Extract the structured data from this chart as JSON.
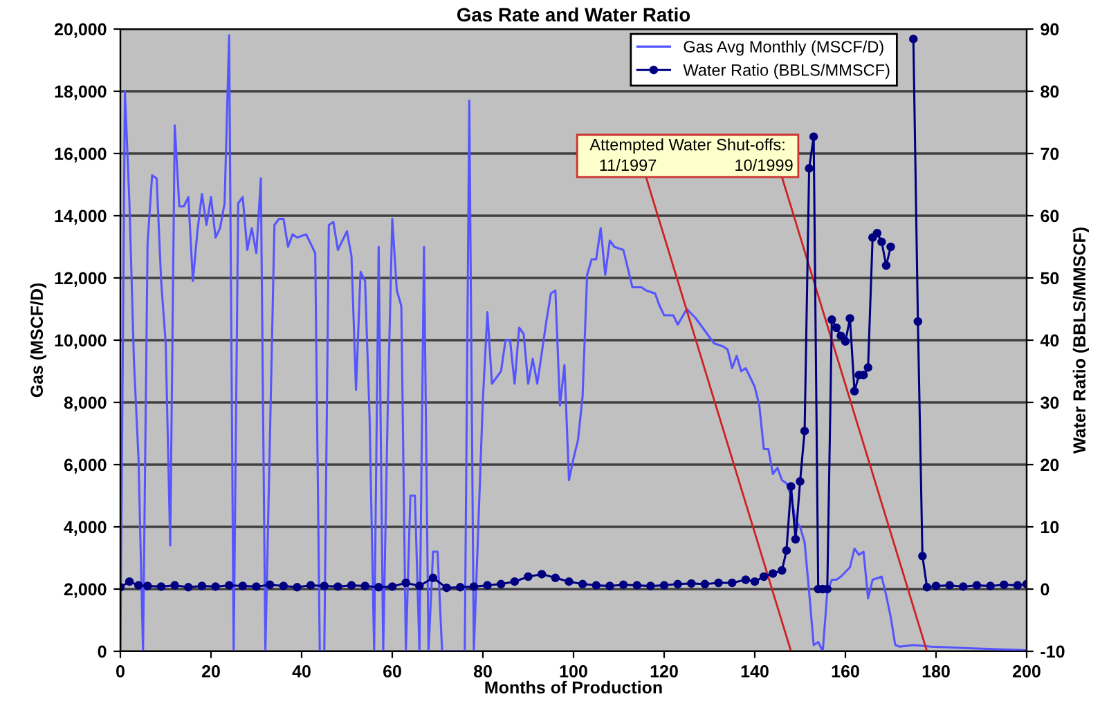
{
  "chart_data": {
    "type": "line",
    "title": "Gas Rate and Water Ratio",
    "xlabel": "Months of Production",
    "ylabel": "Gas (MSCF/D)",
    "y2label": "Water Ratio (BBLS/MMSCF)",
    "xlim": [
      0,
      200
    ],
    "xticks": [
      0,
      20,
      40,
      60,
      80,
      100,
      120,
      140,
      160,
      180,
      200
    ],
    "ylim": [
      0,
      20000
    ],
    "yticks": [
      0,
      {
        "value": 2000,
        "label": "2,000"
      },
      {
        "value": 4000,
        "label": "4,000"
      },
      {
        "value": 6000,
        "label": "6,000"
      },
      {
        "value": 8000,
        "label": "8,000"
      },
      {
        "value": 10000,
        "label": "10,000"
      },
      {
        "value": 12000,
        "label": "12,000"
      },
      {
        "value": 14000,
        "label": "14,000"
      },
      {
        "value": 16000,
        "label": "16,000"
      },
      {
        "value": 18000,
        "label": "18,000"
      },
      {
        "value": 20000,
        "label": "20,000"
      }
    ],
    "y2lim": [
      -10,
      90
    ],
    "y2ticks": [
      -10,
      0,
      10,
      20,
      30,
      40,
      50,
      60,
      70,
      80,
      90
    ],
    "grid": "y",
    "legend": "top",
    "series": [
      {
        "name": "Gas Avg Monthly (MSCF/D)",
        "color": "#5555ff",
        "marker": "none",
        "x": [
          0,
          1,
          2,
          3,
          4,
          5,
          6,
          7,
          8,
          9,
          10,
          11,
          12,
          13,
          14,
          15,
          16,
          17,
          18,
          19,
          20,
          21,
          22,
          23,
          24,
          25,
          26,
          27,
          28,
          29,
          30,
          31,
          32,
          34,
          35,
          36,
          37,
          38,
          39,
          41,
          43,
          44,
          45,
          46,
          47,
          48,
          50,
          51,
          52,
          53,
          54,
          55,
          56,
          57,
          58,
          59,
          60,
          61,
          62,
          63,
          64,
          65,
          66,
          67,
          68,
          69,
          70,
          71,
          76,
          77,
          78,
          80,
          81,
          82,
          83,
          84,
          85,
          86,
          87,
          88,
          89,
          90,
          91,
          92,
          93,
          94,
          95,
          96,
          97,
          98,
          99,
          100,
          101,
          102,
          103,
          104,
          105,
          106,
          107,
          108,
          109,
          111,
          112,
          113,
          115,
          116,
          118,
          119,
          120,
          122,
          123,
          125,
          127,
          129,
          131,
          133,
          134,
          135,
          136,
          137,
          138,
          140,
          141,
          142,
          143,
          144,
          145,
          146,
          147,
          148,
          149,
          150,
          151,
          152,
          153,
          154,
          155,
          156,
          157,
          158,
          159,
          161,
          162,
          163,
          164,
          165,
          166,
          168,
          169,
          170,
          171,
          172,
          175,
          179,
          187,
          197,
          200
        ],
        "values": [
          0,
          18000,
          14400,
          9300,
          6200,
          0,
          13100,
          15300,
          15200,
          11900,
          9900,
          3400,
          16900,
          14300,
          14300,
          14600,
          11900,
          13500,
          14700,
          13700,
          14600,
          13300,
          13600,
          14400,
          19800,
          0,
          14400,
          14600,
          12900,
          13600,
          12800,
          15200,
          0,
          13700,
          13900,
          13900,
          13000,
          13400,
          13300,
          13400,
          12800,
          0,
          0,
          13700,
          13800,
          12900,
          13500,
          12700,
          8400,
          12200,
          11900,
          7500,
          0,
          13000,
          0,
          7800,
          13900,
          11600,
          11100,
          0,
          5000,
          5000,
          0,
          13000,
          0,
          3200,
          3200,
          0,
          0,
          17700,
          0,
          8100,
          10900,
          8600,
          8800,
          9000,
          10000,
          10000,
          8600,
          10400,
          10200,
          8600,
          9400,
          8600,
          9600,
          10600,
          11500,
          11600,
          7900,
          9200,
          5500,
          6200,
          6800,
          8200,
          12100,
          12600,
          12600,
          13600,
          12100,
          13200,
          13000,
          12900,
          12300,
          11700,
          11700,
          11600,
          11500,
          11100,
          10800,
          10800,
          10500,
          11000,
          10700,
          10300,
          9900,
          9800,
          9700,
          9100,
          9500,
          9000,
          9100,
          8500,
          7900,
          6500,
          6500,
          5700,
          5900,
          5500,
          5400,
          5000,
          4200,
          4000,
          3500,
          1900,
          200,
          300,
          0,
          1900,
          2300,
          2300,
          2400,
          2700,
          3300,
          3100,
          3200,
          1700,
          2300,
          2400,
          1800,
          1100,
          200,
          150,
          200,
          150,
          100,
          50,
          30
        ]
      },
      {
        "name": "Water Ratio (BBLS/MMSCF)",
        "color": "#000080",
        "axis": "y2",
        "marker": "circle",
        "x": [
          0,
          2,
          4,
          6,
          9,
          12,
          15,
          18,
          21,
          24,
          27,
          30,
          33,
          36,
          39,
          42,
          45,
          48,
          51,
          54,
          57,
          60,
          63,
          66,
          69,
          72,
          75,
          78,
          81,
          84,
          87,
          90,
          93,
          96,
          99,
          102,
          105,
          108,
          111,
          114,
          117,
          120,
          123,
          126,
          129,
          132,
          135,
          138,
          140,
          142,
          144,
          146,
          147,
          148,
          149,
          150,
          151,
          152,
          153,
          154,
          155,
          156,
          157,
          158,
          159,
          160,
          161,
          162,
          163,
          164,
          165,
          166,
          167,
          168,
          169,
          170,
          172,
          175,
          176,
          177,
          178,
          180,
          183,
          186,
          189,
          192,
          195,
          198,
          200
        ],
        "values": [
          0.3,
          1.2,
          0.6,
          0.5,
          0.4,
          0.6,
          0.3,
          0.5,
          0.4,
          0.6,
          0.5,
          0.4,
          0.7,
          0.5,
          0.3,
          0.6,
          0.5,
          0.4,
          0.6,
          0.5,
          0.3,
          0.4,
          1.0,
          0.5,
          1.8,
          0.2,
          0.3,
          0.4,
          0.6,
          0.8,
          1.2,
          2.0,
          2.4,
          1.8,
          1.2,
          0.8,
          0.6,
          0.5,
          0.7,
          0.6,
          0.5,
          0.6,
          0.8,
          0.9,
          0.8,
          1.0,
          1.0,
          1.5,
          1.2,
          2.0,
          2.5,
          3.0,
          6.2,
          16.5,
          8.0,
          17.3,
          25.4,
          67.6,
          72.7,
          0,
          0,
          0,
          43.3,
          42.0,
          40.7,
          39.8,
          43.5,
          31.8,
          34.4,
          34.4,
          35.6,
          56.5,
          57.2,
          55.8,
          52.0,
          55.0,
          null,
          88.4,
          43.0,
          5.3,
          0.3,
          0.5,
          0.6,
          0.4,
          0.6,
          0.5,
          0.7,
          0.6,
          0.8
        ]
      }
    ],
    "annotations": [
      "Attempted Water Shut-offs:",
      "11/1997",
      "10/1999"
    ]
  }
}
